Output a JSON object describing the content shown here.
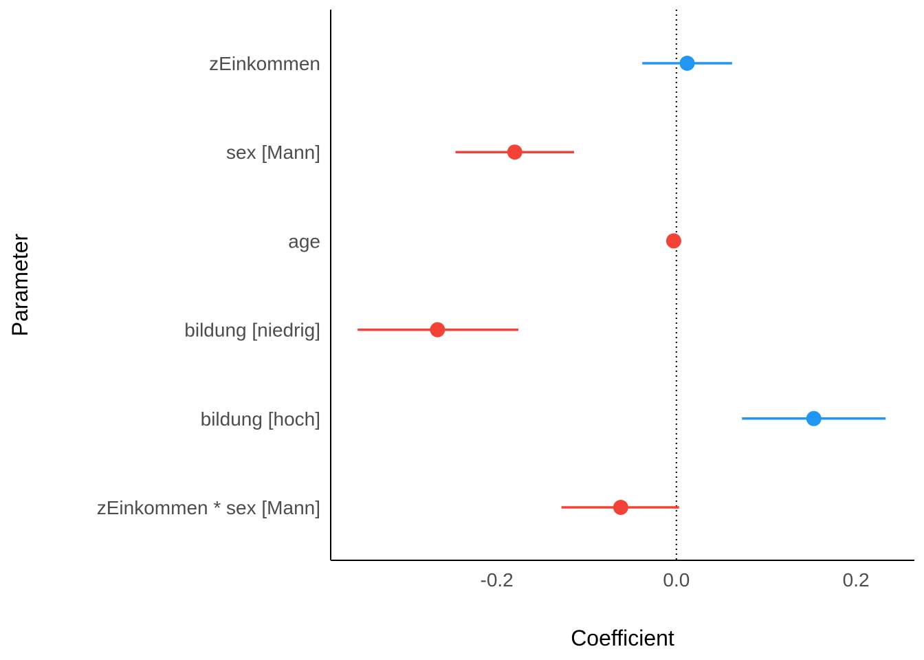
{
  "chart_data": {
    "type": "scatter",
    "subtype": "coefficient-plot",
    "title": "",
    "xlabel": "Coefficient",
    "ylabel": "Parameter",
    "xlim": [
      -0.385,
      0.265
    ],
    "x_ticks": [
      -0.2,
      0.0,
      0.2
    ],
    "x_tick_labels": [
      "-0.2",
      "0.0",
      "0.2"
    ],
    "reference_line": 0,
    "grid": false,
    "legend": "none",
    "colors": {
      "positive": "#2196f3",
      "negative": "#f44336"
    },
    "categories": [
      "zEinkommen",
      "sex [Mann]",
      "age",
      "bildung [niedrig]",
      "bildung [hoch]",
      "zEinkommen * sex [Mann]"
    ],
    "points": [
      {
        "parameter": "zEinkommen",
        "estimate": 0.012,
        "ci_low": -0.038,
        "ci_high": 0.062,
        "sign": "positive"
      },
      {
        "parameter": "sex [Mann]",
        "estimate": -0.18,
        "ci_low": -0.246,
        "ci_high": -0.114,
        "sign": "negative"
      },
      {
        "parameter": "age",
        "estimate": -0.003,
        "ci_low": -0.004,
        "ci_high": -0.002,
        "sign": "negative"
      },
      {
        "parameter": "bildung [niedrig]",
        "estimate": -0.266,
        "ci_low": -0.355,
        "ci_high": -0.176,
        "sign": "negative"
      },
      {
        "parameter": "bildung [hoch]",
        "estimate": 0.153,
        "ci_low": 0.073,
        "ci_high": 0.233,
        "sign": "positive"
      },
      {
        "parameter": "zEinkommen * sex [Mann]",
        "estimate": -0.062,
        "ci_low": -0.128,
        "ci_high": 0.003,
        "sign": "negative"
      }
    ]
  }
}
